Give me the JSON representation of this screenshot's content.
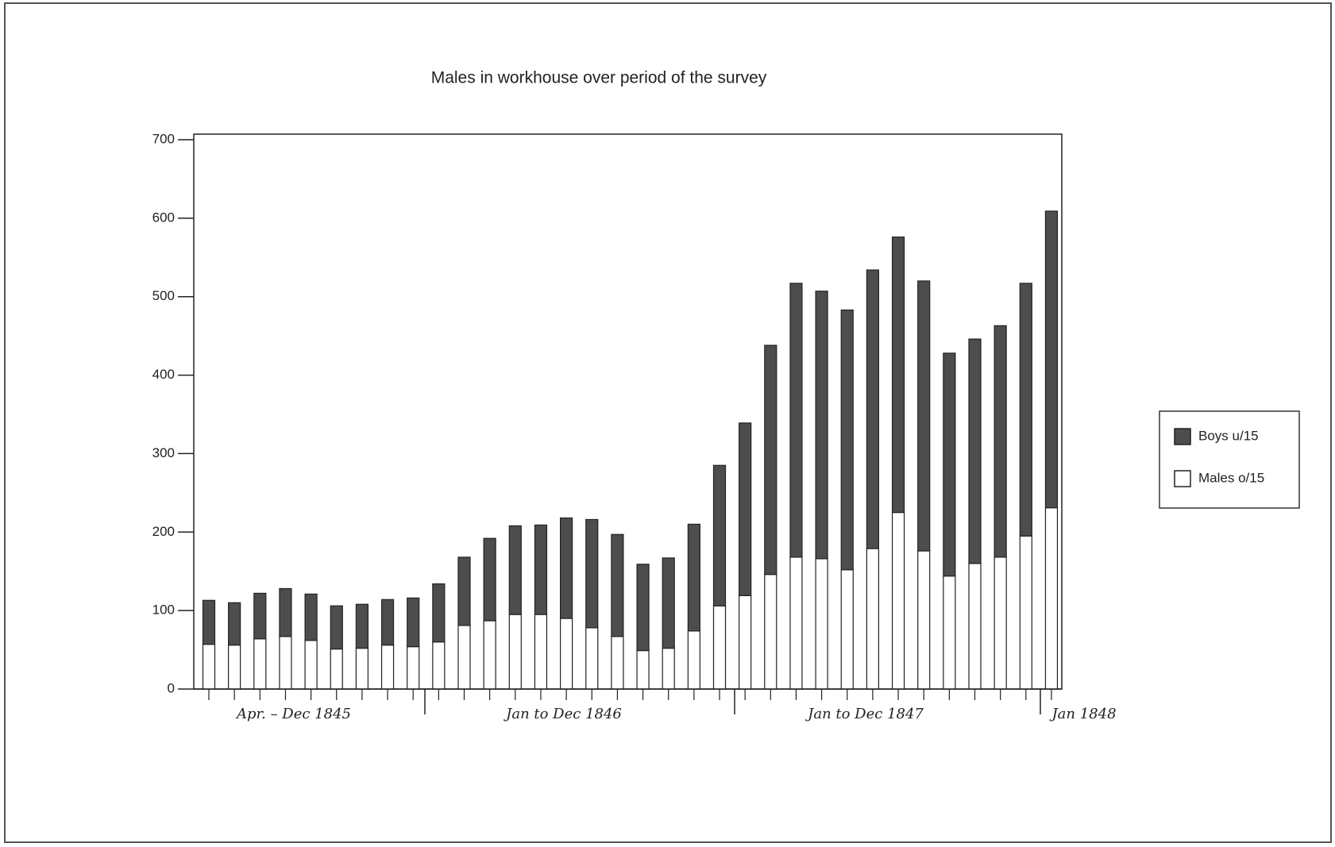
{
  "chart_data": {
    "type": "stacked_bar",
    "title": "Males in workhouse over period of the survey",
    "categories": [
      null,
      null,
      null,
      null,
      null,
      null,
      null,
      null,
      null,
      null,
      null,
      null,
      null,
      null,
      null,
      null,
      null,
      null,
      null,
      null,
      null,
      null,
      null,
      null,
      null,
      null,
      null,
      null,
      null,
      null,
      null,
      null,
      null,
      null
    ],
    "series": [
      {
        "name": "Boys u/15",
        "color": "#4d4d4d",
        "values": [
          56,
          54,
          58,
          61,
          59,
          55,
          56,
          58,
          62,
          74,
          87,
          105,
          113,
          114,
          128,
          138,
          130,
          110,
          115,
          136,
          179,
          220,
          292,
          349,
          341,
          331,
          355,
          351,
          344,
          284,
          286,
          295,
          322,
          378
        ]
      },
      {
        "name": "Males o/15",
        "color": "#ffffff",
        "values": [
          57,
          56,
          64,
          67,
          62,
          51,
          52,
          56,
          54,
          60,
          81,
          87,
          95,
          95,
          90,
          78,
          67,
          49,
          52,
          74,
          106,
          119,
          146,
          168,
          166,
          152,
          179,
          225,
          176,
          144,
          160,
          168,
          195,
          231
        ]
      }
    ],
    "annotations": [
      "Apr. – Dec 1845",
      "Jan to Dec 1846",
      "Jan to Dec 1847",
      "Jan 1848"
    ],
    "ylim": [
      0,
      700
    ],
    "yticks": [
      0,
      100,
      200,
      300,
      400,
      500,
      600,
      700
    ],
    "legend": "right"
  }
}
